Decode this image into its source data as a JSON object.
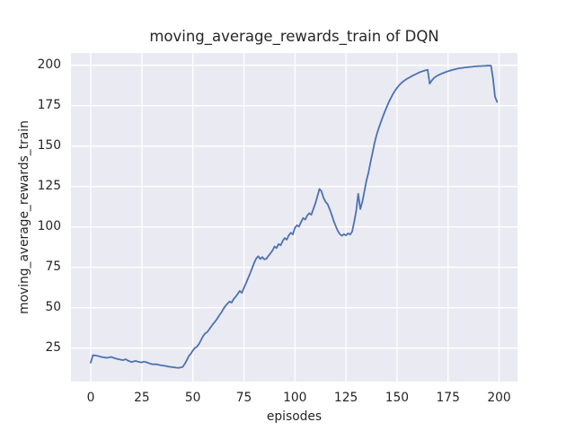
{
  "chart_data": {
    "type": "line",
    "title": "moving_average_rewards_train of DQN",
    "xlabel": "episodes",
    "ylabel": "moving_average_rewards_train",
    "x_ticks": [
      0,
      25,
      50,
      75,
      100,
      125,
      150,
      175,
      200
    ],
    "y_ticks": [
      25,
      50,
      75,
      100,
      125,
      150,
      175,
      200
    ],
    "xlim": [
      -9.7,
      209.0
    ],
    "ylim": [
      4.3,
      207.6
    ],
    "grid": true,
    "legend": "none",
    "colors": {
      "figure_bg": "#ffffff",
      "axes_bg": "#eaeaf2",
      "grid": "#ffffff",
      "line": "#4c72b0",
      "text": "#262626"
    },
    "series": [
      {
        "name": "moving_average_rewards_train",
        "x_start": 0,
        "x_step": 1,
        "values": [
          16.0,
          20.6,
          20.5,
          20.3,
          20.1,
          19.6,
          19.4,
          19.2,
          19.0,
          19.3,
          19.6,
          19.1,
          18.7,
          18.3,
          18.0,
          17.8,
          17.6,
          18.2,
          17.4,
          16.9,
          16.4,
          16.8,
          17.1,
          16.7,
          16.4,
          16.2,
          16.7,
          16.4,
          15.9,
          15.5,
          15.1,
          15.0,
          15.1,
          14.8,
          14.5,
          14.3,
          14.1,
          13.9,
          13.6,
          13.4,
          13.3,
          13.1,
          12.9,
          12.8,
          13.0,
          13.4,
          15.2,
          17.6,
          20.1,
          21.6,
          23.6,
          25.1,
          25.9,
          27.6,
          30.1,
          32.4,
          34.1,
          34.9,
          36.6,
          38.4,
          40.1,
          41.6,
          43.4,
          45.4,
          47.1,
          49.4,
          51.1,
          52.6,
          53.9,
          53.1,
          55.4,
          56.9,
          58.6,
          60.4,
          59.2,
          62.4,
          65.1,
          68.1,
          71.1,
          74.4,
          77.6,
          80.4,
          81.9,
          80.1,
          81.4,
          79.9,
          80.3,
          82.1,
          83.6,
          85.4,
          87.9,
          86.9,
          89.4,
          88.6,
          91.4,
          93.1,
          92.1,
          94.9,
          96.4,
          95.4,
          99.5,
          101.0,
          100.2,
          103.0,
          105.5,
          104.5,
          107.0,
          108.5,
          107.5,
          111.0,
          114.5,
          119.0,
          123.5,
          122.0,
          118.0,
          115.5,
          114.0,
          111.0,
          107.5,
          103.5,
          100.5,
          97.5,
          95.5,
          94.5,
          95.5,
          94.8,
          96.0,
          95.3,
          97.0,
          103.0,
          110.0,
          120.5,
          111.0,
          115.5,
          122.0,
          128.5,
          133.5,
          140.0,
          146.0,
          152.0,
          157.0,
          161.0,
          164.5,
          168.0,
          171.3,
          174.3,
          177.2,
          179.8,
          182.2,
          184.2,
          186.0,
          187.6,
          188.9,
          190.0,
          190.9,
          191.7,
          192.4,
          193.1,
          193.8,
          194.4,
          195.0,
          195.6,
          196.1,
          196.5,
          196.9,
          197.2,
          188.6,
          190.6,
          192.0,
          193.0,
          193.7,
          194.3,
          194.9,
          195.4,
          195.9,
          196.3,
          196.7,
          197.1,
          197.4,
          197.7,
          198.0,
          198.2,
          198.4,
          198.6,
          198.7,
          198.9,
          199.0,
          199.1,
          199.3,
          199.4,
          199.5,
          199.5,
          199.6,
          199.6,
          199.7,
          199.8,
          199.7,
          192.0,
          180.5,
          177.3
        ]
      }
    ]
  }
}
